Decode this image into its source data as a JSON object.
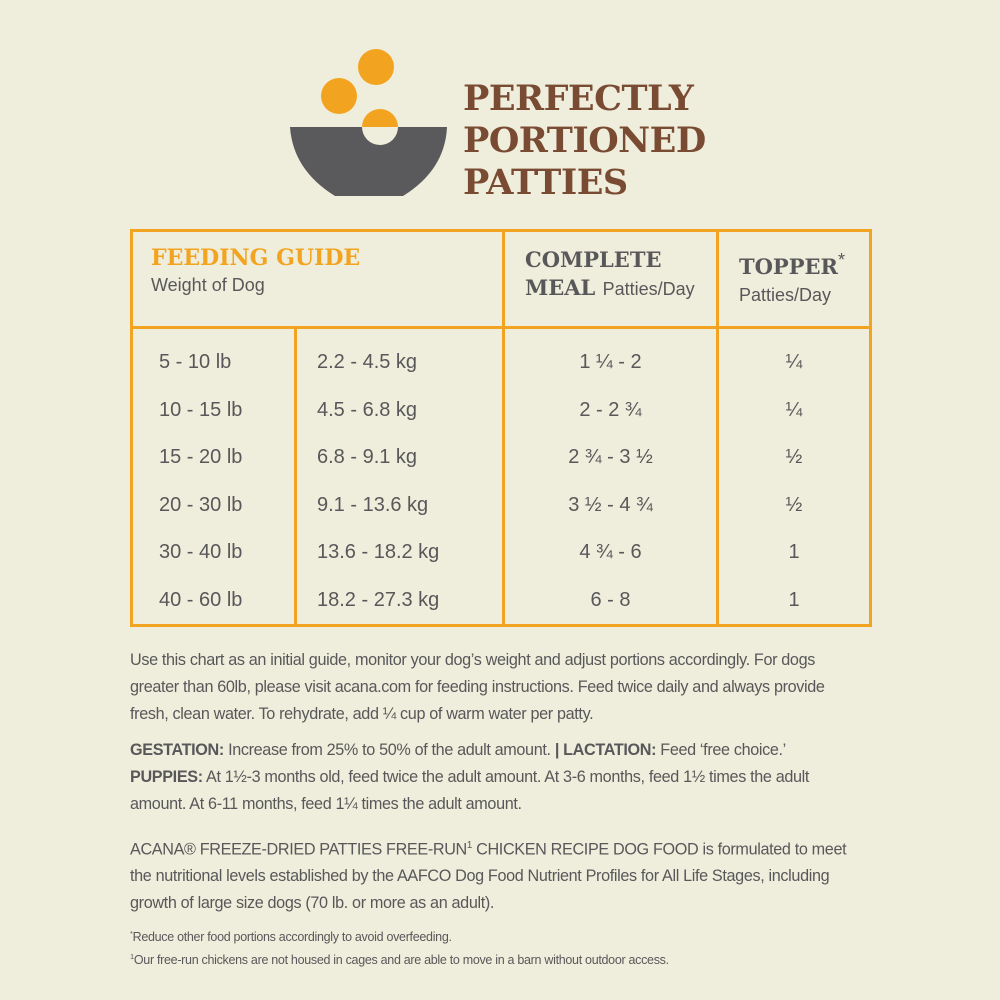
{
  "header": {
    "title_lines": [
      "PERFECTLY",
      "PORTIONED",
      "PATTIES"
    ],
    "logo_icon": "bowl-with-patties-icon"
  },
  "colors": {
    "accent": "#f2a421",
    "title": "#7a4b33",
    "text": "#58585a",
    "bowl": "#5a5a5c",
    "background": "#efeddb"
  },
  "table": {
    "feeding_guide": "FEEDING GUIDE",
    "weight_label": "Weight of Dog",
    "complete_line1": "COMPLETE",
    "complete_line2": "MEAL",
    "complete_unit": "Patties/Day",
    "topper": "TOPPER",
    "topper_mark": "*",
    "topper_unit": "Patties/Day",
    "rows": [
      {
        "lb": "5 - 10 lb",
        "kg": "2.2 - 4.5 kg",
        "complete": "1 ¼ - 2",
        "topper": "¼"
      },
      {
        "lb": "10 - 15 lb",
        "kg": "4.5 - 6.8 kg",
        "complete": "2 - 2 ¾",
        "topper": "¼"
      },
      {
        "lb": "15 - 20 lb",
        "kg": "6.8 - 9.1 kg",
        "complete": "2 ¾ - 3 ½",
        "topper": "½"
      },
      {
        "lb": "20 - 30 lb",
        "kg": "9.1 - 13.6 kg",
        "complete": "3 ½ - 4 ¾",
        "topper": "½"
      },
      {
        "lb": "30 - 40 lb",
        "kg": "13.6 - 18.2 kg",
        "complete": "4 ¾ - 6",
        "topper": "1"
      },
      {
        "lb": "40 - 60 lb",
        "kg": "18.2 - 27.3 kg",
        "complete": "6 - 8",
        "topper": "1"
      }
    ]
  },
  "notes": {
    "intro": "Use this chart as an initial guide, monitor your dog’s weight and adjust portions accordingly. For dogs greater than 60lb, please visit acana.com for feeding instructions. Feed twice daily and always provide fresh, clean water. To rehydrate, add ¼ cup of warm water per patty.",
    "gestation_label": "GESTATION:",
    "gestation": " Increase from 25% to 50% of the adult amount. ",
    "lactation_label": "| LACTATION:",
    "lactation": " Feed ‘free choice.’",
    "puppies_label": "PUPPIES:",
    "puppies": " At 1½-3 months old, feed twice the adult amount. At 3-6 months, feed 1½ times the adult amount. At 6-11 months, feed 1¼ times the adult amount.",
    "aafco_a": "ACANA® FREEZE-DRIED PATTIES FREE-RUN",
    "aafco_sup": "1",
    "aafco_b": " CHICKEN RECIPE DOG FOOD is formulated to meet the nutritional levels established by the AAFCO Dog Food Nutrient Profiles for All Life Stages, including growth of large size dogs (70 lb. or more as an adult).",
    "foot1_mark": "*",
    "foot1": "Reduce other food portions accordingly to avoid overfeeding.",
    "foot2_mark": "1",
    "foot2": "Our free-run chickens are not housed in cages and are able to move in a barn without outdoor access."
  }
}
